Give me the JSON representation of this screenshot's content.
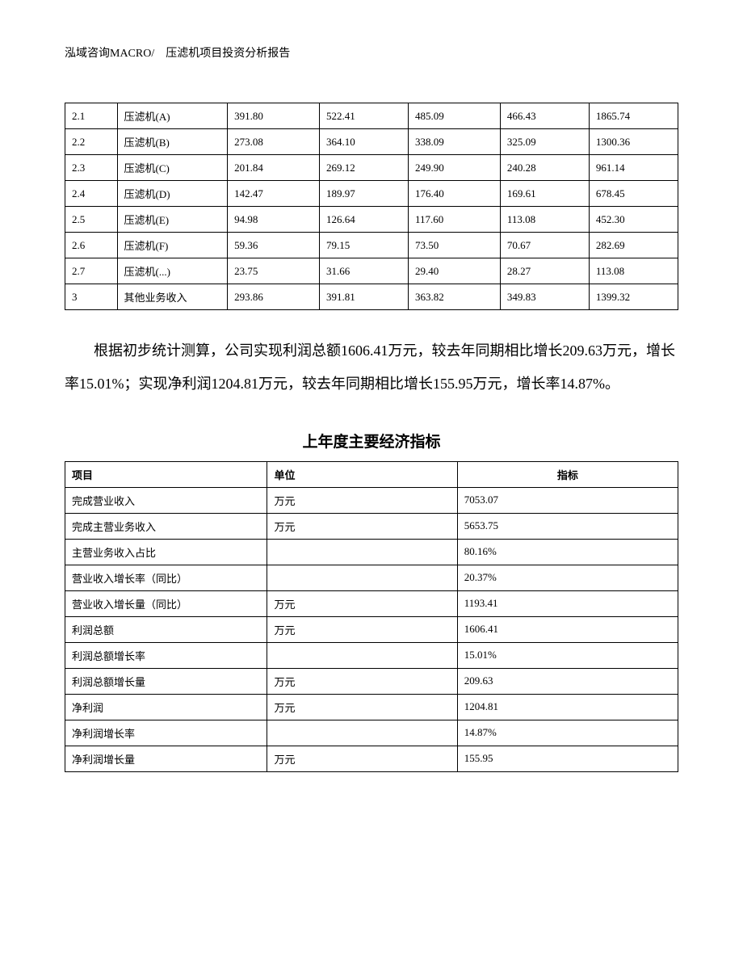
{
  "header": "泓域咨询MACRO/　压滤机项目投资分析报告",
  "table1": {
    "rows": [
      [
        "2.1",
        "压滤机(A)",
        "391.80",
        "522.41",
        "485.09",
        "466.43",
        "1865.74"
      ],
      [
        "2.2",
        "压滤机(B)",
        "273.08",
        "364.10",
        "338.09",
        "325.09",
        "1300.36"
      ],
      [
        "2.3",
        "压滤机(C)",
        "201.84",
        "269.12",
        "249.90",
        "240.28",
        "961.14"
      ],
      [
        "2.4",
        "压滤机(D)",
        "142.47",
        "189.97",
        "176.40",
        "169.61",
        "678.45"
      ],
      [
        "2.5",
        "压滤机(E)",
        "94.98",
        "126.64",
        "117.60",
        "113.08",
        "452.30"
      ],
      [
        "2.6",
        "压滤机(F)",
        "59.36",
        "79.15",
        "73.50",
        "70.67",
        "282.69"
      ],
      [
        "2.7",
        "压滤机(...)",
        "23.75",
        "31.66",
        "29.40",
        "28.27",
        "113.08"
      ],
      [
        "3",
        "其他业务收入",
        "293.86",
        "391.81",
        "363.82",
        "349.83",
        "1399.32"
      ]
    ]
  },
  "paragraph": "根据初步统计测算，公司实现利润总额1606.41万元，较去年同期相比增长209.63万元，增长率15.01%；实现净利润1204.81万元，较去年同期相比增长155.95万元，增长率14.87%。",
  "section_title": "上年度主要经济指标",
  "table2": {
    "headers": [
      "项目",
      "单位",
      "指标"
    ],
    "rows": [
      [
        "完成营业收入",
        "万元",
        "7053.07"
      ],
      [
        "完成主营业务收入",
        "万元",
        "5653.75"
      ],
      [
        "主营业务收入占比",
        "",
        "80.16%"
      ],
      [
        "营业收入增长率（同比）",
        "",
        "20.37%"
      ],
      [
        "营业收入增长量（同比）",
        "万元",
        "1193.41"
      ],
      [
        "利润总额",
        "万元",
        "1606.41"
      ],
      [
        "利润总额增长率",
        "",
        "15.01%"
      ],
      [
        "利润总额增长量",
        "万元",
        "209.63"
      ],
      [
        "净利润",
        "万元",
        "1204.81"
      ],
      [
        "净利润增长率",
        "",
        "14.87%"
      ],
      [
        "净利润增长量",
        "万元",
        "155.95"
      ]
    ]
  }
}
